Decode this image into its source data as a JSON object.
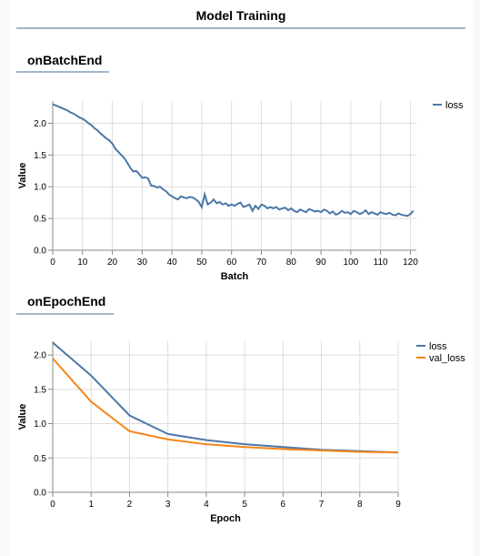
{
  "page_title": "Model Training",
  "chart_data": [
    {
      "type": "line",
      "title": "onBatchEnd",
      "xlabel": "Batch",
      "ylabel": "Value",
      "grid": true,
      "legend": "right",
      "x": [
        0,
        1,
        2,
        3,
        4,
        5,
        6,
        7,
        8,
        9,
        10,
        11,
        12,
        13,
        14,
        15,
        16,
        17,
        18,
        19,
        20,
        21,
        22,
        23,
        24,
        25,
        26,
        27,
        28,
        29,
        30,
        31,
        32,
        33,
        34,
        35,
        36,
        37,
        38,
        39,
        40,
        41,
        42,
        43,
        44,
        45,
        46,
        47,
        48,
        49,
        50,
        51,
        52,
        53,
        54,
        55,
        56,
        57,
        58,
        59,
        60,
        61,
        62,
        63,
        64,
        65,
        66,
        67,
        68,
        69,
        70,
        71,
        72,
        73,
        74,
        75,
        76,
        77,
        78,
        79,
        80,
        81,
        82,
        83,
        84,
        85,
        86,
        87,
        88,
        89,
        90,
        91,
        92,
        93,
        94,
        95,
        96,
        97,
        98,
        99,
        100,
        101,
        102,
        103,
        104,
        105,
        106,
        107,
        108,
        109,
        110,
        111,
        112,
        113,
        114,
        115,
        116,
        117,
        118,
        119,
        120,
        121
      ],
      "series": [
        {
          "name": "loss",
          "color": "#4c78a8",
          "values": [
            2.3,
            2.28,
            2.26,
            2.24,
            2.22,
            2.2,
            2.17,
            2.15,
            2.12,
            2.09,
            2.07,
            2.04,
            2.0,
            1.97,
            1.92,
            1.89,
            1.84,
            1.8,
            1.76,
            1.73,
            1.68,
            1.6,
            1.55,
            1.5,
            1.45,
            1.38,
            1.3,
            1.24,
            1.25,
            1.2,
            1.14,
            1.15,
            1.13,
            1.02,
            1.01,
            0.99,
            1.0,
            0.96,
            0.93,
            0.88,
            0.85,
            0.82,
            0.8,
            0.85,
            0.83,
            0.82,
            0.84,
            0.83,
            0.8,
            0.76,
            0.68,
            0.88,
            0.72,
            0.75,
            0.8,
            0.74,
            0.76,
            0.72,
            0.74,
            0.7,
            0.72,
            0.7,
            0.73,
            0.75,
            0.68,
            0.7,
            0.72,
            0.62,
            0.7,
            0.65,
            0.72,
            0.7,
            0.66,
            0.68,
            0.66,
            0.68,
            0.64,
            0.66,
            0.67,
            0.63,
            0.66,
            0.62,
            0.6,
            0.64,
            0.62,
            0.6,
            0.65,
            0.63,
            0.61,
            0.62,
            0.6,
            0.64,
            0.62,
            0.58,
            0.61,
            0.56,
            0.58,
            0.62,
            0.59,
            0.6,
            0.57,
            0.62,
            0.6,
            0.57,
            0.59,
            0.63,
            0.57,
            0.6,
            0.58,
            0.56,
            0.6,
            0.58,
            0.57,
            0.59,
            0.56,
            0.55,
            0.58,
            0.56,
            0.55,
            0.54,
            0.57,
            0.62
          ]
        }
      ],
      "xlim": [
        0,
        122
      ],
      "xticks": [
        0,
        10,
        20,
        30,
        40,
        50,
        60,
        70,
        80,
        90,
        100,
        110,
        120
      ],
      "ylim": [
        0,
        2.35
      ],
      "yticks": [
        {
          "value": 0,
          "label": "0.0"
        },
        0.5,
        {
          "value": 1,
          "label": "1.0"
        },
        1.5,
        {
          "value": 2,
          "label": "2.0"
        }
      ]
    },
    {
      "type": "line",
      "title": "onEpochEnd",
      "xlabel": "Epoch",
      "ylabel": "Value",
      "grid": true,
      "legend": "right",
      "x": [
        0,
        1,
        2,
        3,
        4,
        5,
        6,
        7,
        8,
        9
      ],
      "series": [
        {
          "name": "loss",
          "color": "#4c78a8",
          "values": [
            2.18,
            1.7,
            1.12,
            0.85,
            0.76,
            0.7,
            0.66,
            0.62,
            0.6,
            0.58
          ]
        },
        {
          "name": "val_loss",
          "color": "#f58518",
          "values": [
            1.95,
            1.32,
            0.89,
            0.77,
            0.7,
            0.66,
            0.63,
            0.61,
            0.59,
            0.58
          ]
        }
      ],
      "xlim": [
        0,
        9
      ],
      "xticks": [
        0,
        1,
        2,
        3,
        4,
        5,
        6,
        7,
        8,
        9
      ],
      "ylim": [
        0,
        2.2
      ],
      "yticks": [
        {
          "value": 0,
          "label": "0.0"
        },
        0.5,
        {
          "value": 1,
          "label": "1.0"
        },
        1.5,
        {
          "value": 2,
          "label": "2.0"
        }
      ]
    }
  ]
}
